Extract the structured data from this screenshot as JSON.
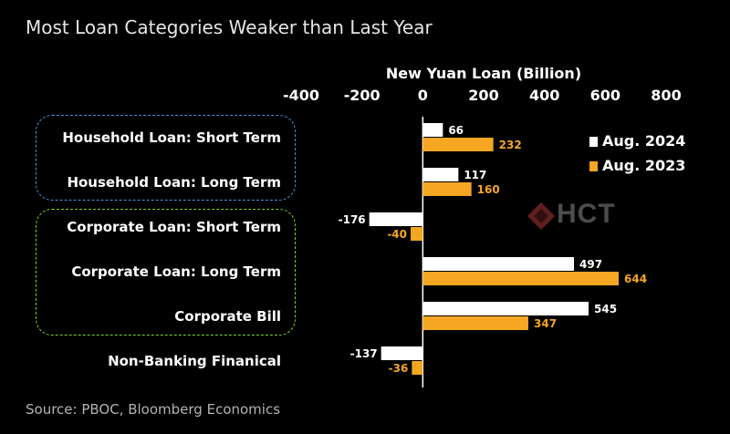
{
  "chart_data": {
    "type": "bar",
    "orientation": "horizontal",
    "title": "Most Loan Categories Weaker than Last Year",
    "xlabel": "New Yuan Loan (Billion)",
    "xlim": [
      -400,
      800
    ],
    "xticks": [
      -400,
      -200,
      0,
      200,
      400,
      600,
      800
    ],
    "categories": [
      "Household Loan: Short Term",
      "Household Loan: Long Term",
      "Corporate Loan: Short Term",
      "Corporate Loan: Long Term",
      "Corporate Bill",
      "Non-Banking Finanical"
    ],
    "series": [
      {
        "name": "Aug. 2024",
        "color": "#ffffff",
        "values": [
          66,
          117,
          -176,
          497,
          545,
          -137
        ]
      },
      {
        "name": "Aug. 2023",
        "color": "#f5a623",
        "values": [
          232,
          160,
          -40,
          644,
          347,
          -36
        ]
      }
    ],
    "legend_position": "right",
    "grid": false
  },
  "groups": [
    {
      "color": "#4a90e2"
    },
    {
      "color": "#7ed321"
    }
  ],
  "watermark": {
    "text": "HCT"
  },
  "source": "Source: PBOC, Bloomberg Economics"
}
